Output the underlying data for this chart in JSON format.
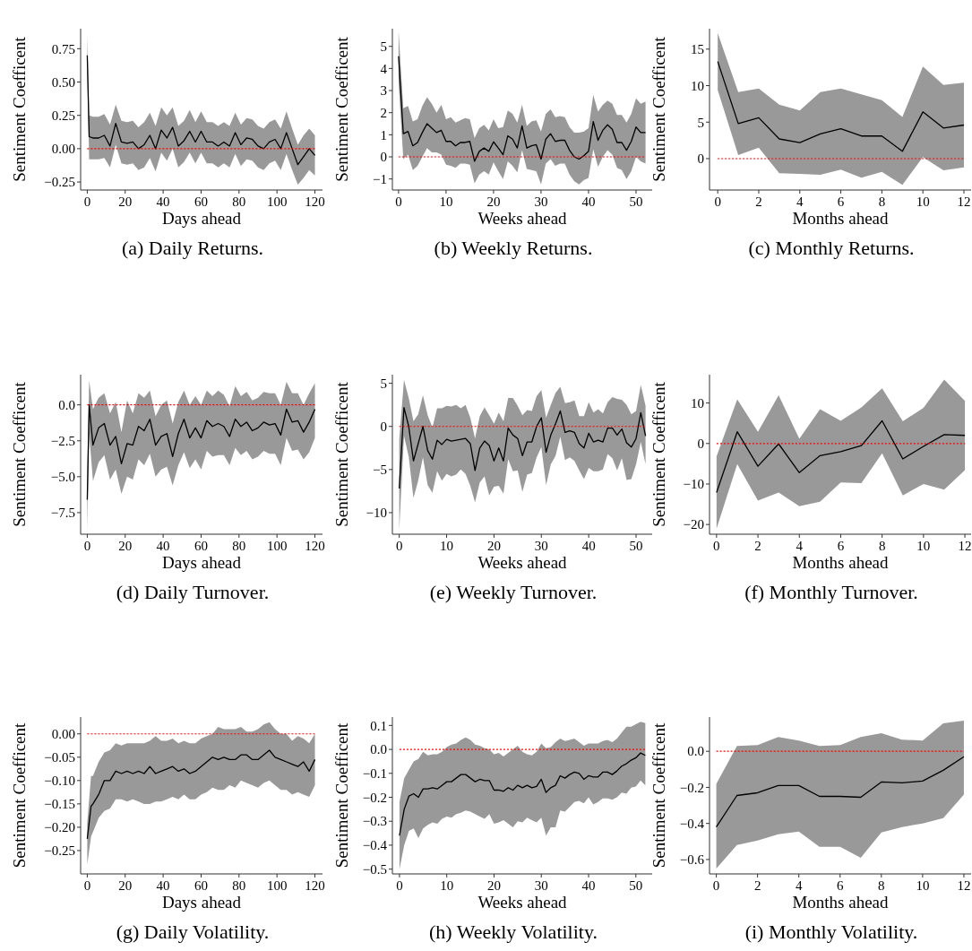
{
  "chart_data": [
    {
      "type": "line",
      "title": "(a) Daily Returns.",
      "xlabel": "Days ahead",
      "ylabel": "Sentiment Coefficent",
      "xlim": [
        -3.5,
        124
      ],
      "xticks": [
        0,
        20,
        40,
        60,
        80,
        100,
        120
      ],
      "ylim": [
        -0.31,
        0.9
      ],
      "yticks": [
        {
          "value": -0.25,
          "label": "−0.25"
        },
        {
          "value": 0,
          "label": "0.00"
        },
        0.25,
        {
          "value": 0.5,
          "label": "0.50"
        },
        0.75
      ],
      "grid": false,
      "ref_lines": [
        {
          "axis": "y",
          "value": 0,
          "color": "#ff0000",
          "line_style": "dotted"
        }
      ],
      "series": [
        {
          "color": "#000000",
          "x": [
            0,
            1,
            3,
            6,
            9,
            12,
            15,
            18,
            21,
            24,
            27,
            30,
            33,
            36,
            39,
            42,
            45,
            48,
            51,
            54,
            57,
            60,
            63,
            66,
            69,
            72,
            75,
            78,
            81,
            84,
            87,
            90,
            93,
            96,
            99,
            102,
            105,
            108,
            111,
            114,
            117,
            120
          ],
          "values": [
            0.7,
            0.09,
            0.08,
            0.08,
            0.1,
            0.02,
            0.19,
            0.05,
            0.04,
            0.05,
            0.0,
            0.03,
            0.1,
            0.0,
            0.14,
            0.08,
            0.16,
            0.02,
            0.06,
            0.13,
            0.05,
            0.13,
            0.05,
            0.05,
            0.02,
            0.05,
            0.02,
            0.12,
            0.03,
            0.08,
            0.07,
            0.02,
            0.0,
            0.05,
            0.07,
            0.0,
            0.12,
            0.0,
            -0.12,
            -0.06,
            0.0,
            -0.05
          ],
          "upper": [
            0.85,
            0.25,
            0.24,
            0.24,
            0.26,
            0.18,
            0.33,
            0.21,
            0.2,
            0.21,
            0.16,
            0.2,
            0.27,
            0.17,
            0.31,
            0.25,
            0.31,
            0.17,
            0.21,
            0.29,
            0.2,
            0.28,
            0.2,
            0.2,
            0.17,
            0.2,
            0.17,
            0.27,
            0.18,
            0.23,
            0.22,
            0.17,
            0.15,
            0.2,
            0.22,
            0.15,
            0.28,
            0.15,
            0.03,
            0.1,
            0.15,
            0.1
          ],
          "lower": [
            0.55,
            -0.08,
            -0.08,
            -0.08,
            -0.07,
            -0.14,
            0.03,
            -0.11,
            -0.12,
            -0.11,
            -0.16,
            -0.14,
            -0.07,
            -0.17,
            -0.03,
            -0.09,
            0.0,
            -0.14,
            -0.1,
            -0.03,
            -0.11,
            -0.03,
            -0.11,
            -0.11,
            -0.14,
            -0.11,
            -0.14,
            -0.04,
            -0.13,
            -0.08,
            -0.09,
            -0.14,
            -0.16,
            -0.11,
            -0.09,
            -0.16,
            -0.04,
            -0.16,
            -0.27,
            -0.22,
            -0.16,
            -0.2
          ]
        }
      ]
    },
    {
      "type": "line",
      "title": "(b) Weekly Returns.",
      "xlabel": "Weeks ahead",
      "ylabel": "Sentiment Coefficent",
      "xlim": [
        -1.3,
        53.4
      ],
      "xticks": [
        0,
        10,
        20,
        30,
        40,
        50
      ],
      "ylim": [
        -1.5,
        5.8
      ],
      "yticks": [
        {
          "value": -1,
          "label": "−1"
        },
        0,
        1,
        2,
        3,
        4,
        5
      ],
      "grid": false,
      "ref_lines": [
        {
          "axis": "y",
          "value": 0,
          "color": "#ff0000",
          "line_style": "dotted"
        }
      ],
      "series": [
        {
          "color": "#000000",
          "x": [
            0,
            1,
            2,
            3,
            4,
            5,
            6,
            7,
            8,
            9,
            10,
            11,
            12,
            13,
            14,
            15,
            16,
            17,
            18,
            19,
            20,
            21,
            22,
            23,
            24,
            25,
            26,
            27,
            28,
            29,
            30,
            31,
            32,
            33,
            34,
            35,
            36,
            37,
            38,
            39,
            40,
            41,
            42,
            43,
            44,
            45,
            46,
            47,
            48,
            49,
            50,
            51,
            52
          ],
          "values": [
            4.55,
            1.05,
            1.15,
            0.5,
            0.65,
            1.1,
            1.5,
            1.3,
            1.1,
            1.2,
            0.7,
            0.7,
            0.5,
            0.65,
            0.65,
            0.7,
            -0.2,
            0.25,
            0.4,
            0.25,
            0.68,
            0.4,
            0.1,
            0.95,
            0.8,
            0.4,
            1.4,
            0.4,
            0.5,
            0.55,
            -0.1,
            0.8,
            1.05,
            0.7,
            0.75,
            0.75,
            0.3,
            0.0,
            -0.1,
            0.05,
            0.25,
            1.6,
            0.75,
            1.2,
            1.45,
            1.25,
            0.65,
            0.65,
            0.3,
            0.7,
            1.35,
            1.1,
            1.1
          ],
          "upper": [
            5.7,
            2.2,
            2.3,
            1.6,
            1.7,
            2.3,
            2.7,
            2.4,
            2.0,
            2.35,
            1.7,
            1.8,
            1.55,
            1.65,
            1.75,
            1.7,
            0.85,
            1.3,
            1.45,
            1.2,
            1.7,
            1.3,
            1.35,
            2.1,
            1.95,
            1.55,
            2.35,
            1.4,
            1.6,
            1.65,
            1.15,
            1.95,
            2.15,
            1.8,
            1.85,
            1.8,
            1.35,
            1.1,
            1.1,
            1.15,
            1.3,
            2.8,
            2.05,
            2.35,
            2.55,
            2.4,
            1.9,
            1.9,
            1.55,
            1.95,
            2.65,
            2.4,
            2.5
          ],
          "lower": [
            3.4,
            -0.1,
            0.1,
            -0.6,
            -0.4,
            0,
            0.4,
            0.2,
            0.2,
            0.1,
            -0.35,
            -0.4,
            -0.5,
            -0.3,
            -0.3,
            -0.35,
            -1.2,
            -0.8,
            -0.65,
            -0.8,
            -0.25,
            -0.65,
            -1.0,
            -0.2,
            -0.4,
            -0.7,
            0.3,
            -0.55,
            -0.6,
            -0.65,
            -1.25,
            -0.3,
            -0.1,
            -0.4,
            -0.3,
            -0.3,
            -0.8,
            -1.1,
            -1.25,
            -1.05,
            -0.95,
            0.35,
            -0.45,
            0,
            0.3,
            0.1,
            -0.5,
            -0.6,
            -1.0,
            -0.65,
            0,
            -0.2,
            -0.3
          ]
        }
      ]
    },
    {
      "type": "line",
      "title": "(c) Monthly Returns.",
      "xlabel": "Months ahead",
      "ylabel": "Sentiment Coefficent",
      "xlim": [
        -0.4,
        12.35
      ],
      "xticks": [
        0,
        2,
        4,
        6,
        8,
        10,
        12
      ],
      "ylim": [
        -4.3,
        17.8
      ],
      "yticks": [
        0,
        5,
        10,
        15
      ],
      "grid": false,
      "ref_lines": [
        {
          "axis": "y",
          "value": 0,
          "color": "#ff0000",
          "line_style": "dotted"
        }
      ],
      "series": [
        {
          "color": "#000000",
          "x": [
            0,
            1,
            2,
            3,
            4,
            5,
            6,
            7,
            8,
            9,
            10,
            11,
            12
          ],
          "values": [
            13.3,
            4.8,
            5.6,
            2.7,
            2.2,
            3.4,
            4.1,
            3.1,
            3.1,
            1.0,
            6.4,
            4.2,
            4.6
          ],
          "upper": [
            17.2,
            9.1,
            9.6,
            7.4,
            6.6,
            9.1,
            9.6,
            8.8,
            8.0,
            5.7,
            12.6,
            10.1,
            10.4
          ],
          "lower": [
            9.4,
            0.5,
            1.5,
            -2.0,
            -2.1,
            -2.2,
            -1.5,
            -2.6,
            -1.8,
            -3.6,
            0.2,
            -1.6,
            -1.2
          ]
        }
      ]
    },
    {
      "type": "line",
      "title": "(d) Daily Turnover.",
      "xlabel": "Days ahead",
      "ylabel": "Sentiment Coefficent",
      "xlim": [
        -3.5,
        124
      ],
      "xticks": [
        0,
        20,
        40,
        60,
        80,
        100,
        120
      ],
      "ylim": [
        -9,
        2.1
      ],
      "yticks": [
        {
          "value": -7.5,
          "label": "−7.5"
        },
        {
          "value": -5,
          "label": "−5.0"
        },
        {
          "value": -2.5,
          "label": "−2.5"
        },
        {
          "value": 0,
          "label": "0.0"
        }
      ],
      "grid": false,
      "ref_lines": [
        {
          "axis": "y",
          "value": 0,
          "color": "#ff0000",
          "line_style": "dotted"
        }
      ],
      "series": [
        {
          "color": "#000000",
          "x": [
            0,
            1,
            3,
            6,
            9,
            12,
            15,
            18,
            21,
            24,
            27,
            30,
            33,
            36,
            39,
            42,
            45,
            48,
            51,
            54,
            57,
            60,
            63,
            66,
            69,
            72,
            75,
            78,
            81,
            84,
            87,
            90,
            93,
            96,
            99,
            102,
            105,
            108,
            111,
            114,
            117,
            120
          ],
          "values": [
            -6.6,
            0,
            -2.8,
            -1.6,
            -1.3,
            -2.8,
            -2.2,
            -4.1,
            -2.7,
            -2.8,
            -1.5,
            -1.8,
            -1.0,
            -2.8,
            -2.2,
            -2.0,
            -3.6,
            -2.0,
            -1.0,
            -2.3,
            -1.6,
            -2.3,
            -1.1,
            -1.5,
            -1.3,
            -1.5,
            -2.2,
            -1.0,
            -1.5,
            -1.2,
            -1.8,
            -1.6,
            -1.2,
            -1.4,
            -1.3,
            -2.1,
            -0.3,
            -1.2,
            -1.1,
            -1.9,
            -1.2,
            -0.3
          ],
          "upper": [
            -4.5,
            1.7,
            -0.3,
            0.5,
            0.8,
            -0.6,
            0.2,
            -1.9,
            0.3,
            -0.6,
            0.8,
            0.5,
            1.0,
            -0.8,
            0.0,
            0.3,
            -1.3,
            0.2,
            1.0,
            0.0,
            0.6,
            0.0,
            1.0,
            0.6,
            1.0,
            0.7,
            -0.1,
            1.3,
            0.6,
            0.9,
            0.3,
            0.5,
            0.9,
            0.8,
            0.8,
            0.0,
            1.6,
            0.8,
            0.8,
            0.0,
            0.8,
            1.5
          ],
          "lower": [
            -8.8,
            -2.0,
            -5.3,
            -4.0,
            -3.5,
            -5.2,
            -4.5,
            -6.2,
            -5.0,
            -5.2,
            -3.8,
            -4.2,
            -3.4,
            -5.0,
            -4.5,
            -4.3,
            -5.6,
            -4.2,
            -3.3,
            -4.4,
            -3.8,
            -4.5,
            -3.2,
            -3.6,
            -3.5,
            -3.5,
            -4.2,
            -3.0,
            -3.5,
            -3.2,
            -3.8,
            -3.6,
            -3.2,
            -3.4,
            -3.4,
            -4.2,
            -2.3,
            -3.2,
            -3.1,
            -3.8,
            -3.3,
            -2.3
          ]
        }
      ]
    },
    {
      "type": "line",
      "title": "(e) Weekly Turnover.",
      "xlabel": "Weeks ahead",
      "ylabel": "Sentiment Coefficent",
      "xlim": [
        -1.45,
        53.4
      ],
      "xticks": [
        0,
        10,
        20,
        30,
        40,
        50
      ],
      "ylim": [
        -12.5,
        6
      ],
      "yticks": [
        {
          "value": -10,
          "label": "−10"
        },
        {
          "value": -5,
          "label": "−5"
        },
        0,
        5
      ],
      "grid": false,
      "ref_lines": [
        {
          "axis": "y",
          "value": 0,
          "color": "#ff0000",
          "line_style": "dotted"
        }
      ],
      "series": [
        {
          "color": "#000000",
          "x": [
            0,
            1,
            2,
            3,
            4,
            5,
            6,
            7,
            8,
            9,
            10,
            11,
            12,
            13,
            14,
            15,
            16,
            17,
            18,
            19,
            20,
            21,
            22,
            23,
            24,
            25,
            26,
            27,
            28,
            29,
            30,
            31,
            32,
            33,
            34,
            35,
            36,
            37,
            38,
            39,
            40,
            41,
            42,
            43,
            44,
            45,
            46,
            47,
            48,
            49,
            50,
            51,
            52
          ],
          "values": [
            -7.2,
            2.2,
            0,
            -4,
            -2,
            0,
            -2.8,
            -3.8,
            -1.6,
            -2.1,
            -1.5,
            -1.7,
            -1.6,
            -1.5,
            -1.4,
            -2.0,
            -5.1,
            -2.5,
            -1.7,
            -2.2,
            -4.0,
            -2.5,
            -4.0,
            -0.2,
            -1.0,
            -1.4,
            -3.4,
            -1.8,
            -1.8,
            0.0,
            1.0,
            -3.0,
            -1.0,
            0.3,
            1.8,
            -0.7,
            -0.5,
            -0.7,
            -2.0,
            -2.5,
            -0.8,
            -1.8,
            -1.6,
            -1.8,
            -0.2,
            -0.2,
            -1.0,
            -0.3,
            -1.9,
            -2.4,
            -1.4,
            1.6,
            -1.1
          ],
          "upper": [
            -1.5,
            5.4,
            3.3,
            0.6,
            1.4,
            3.6,
            1.3,
            -0.1,
            2.1,
            2.1,
            2.4,
            2.3,
            2.5,
            2.1,
            2.5,
            1.0,
            -1.4,
            1.2,
            2.2,
            1.3,
            0.3,
            1.6,
            0.6,
            3.3,
            3.3,
            2.4,
            1.3,
            1.9,
            1.8,
            3.5,
            4.2,
            1.0,
            2.5,
            3.9,
            4.6,
            2.7,
            2.8,
            3.0,
            1.2,
            1.2,
            2.8,
            1.6,
            2.0,
            1.5,
            2.8,
            3.4,
            3.2,
            3.1,
            2.5,
            1.4,
            1.8,
            4.8,
            2.4
          ],
          "lower": [
            -12,
            -1.1,
            -3.5,
            -8.3,
            -6.3,
            -3.6,
            -6.8,
            -7.7,
            -5.2,
            -6.3,
            -5.5,
            -5.8,
            -5.6,
            -5.0,
            -5.5,
            -6.9,
            -8.8,
            -6.5,
            -5.8,
            -8.0,
            -7.0,
            -6.9,
            -7.8,
            -3.8,
            -5.2,
            -5.1,
            -7.6,
            -5.6,
            -5.4,
            -3.6,
            -2.4,
            -6.8,
            -4.4,
            -3.4,
            -1.2,
            -3.9,
            -3.6,
            -4.0,
            -5.1,
            -6.1,
            -4.8,
            -5.2,
            -5.2,
            -5.0,
            -3.2,
            -3.7,
            -5.1,
            -3.7,
            -6.2,
            -6.1,
            -4.4,
            -1.8,
            -4.4
          ]
        }
      ]
    },
    {
      "type": "line",
      "title": "(f) Monthly Turnover.",
      "xlabel": "Months ahead",
      "ylabel": "Sentiment Coefficent",
      "xlim": [
        -0.34,
        12.3
      ],
      "xticks": [
        0,
        2,
        4,
        6,
        8,
        10,
        12
      ],
      "ylim": [
        -22.4,
        17
      ],
      "yticks": [
        {
          "value": -20,
          "label": "−20"
        },
        {
          "value": -10,
          "label": "−10"
        },
        0,
        10
      ],
      "grid": false,
      "ref_lines": [
        {
          "axis": "y",
          "value": 0,
          "color": "#ff0000",
          "line_style": "dotted"
        }
      ],
      "series": [
        {
          "color": "#000000",
          "x": [
            0,
            1,
            2,
            3,
            4,
            5,
            6,
            7,
            8,
            9,
            10,
            11,
            12
          ],
          "values": [
            -12.1,
            2.9,
            -5.6,
            -0.1,
            -7.2,
            -3.0,
            -2.0,
            -0.5,
            5.6,
            -3.8,
            -0.7,
            2.2,
            2.0
          ],
          "upper": [
            -3.2,
            10.9,
            2.9,
            11.9,
            1.2,
            8.5,
            5.6,
            8.9,
            13.6,
            5.5,
            8.8,
            15.8,
            10.5
          ],
          "lower": [
            -21,
            -5.1,
            -14.1,
            -12.1,
            -15.5,
            -14.4,
            -9.6,
            -9.8,
            -2.4,
            -12.8,
            -10.0,
            -11.4,
            -6.6
          ]
        }
      ]
    },
    {
      "type": "line",
      "title": "(g) Daily Volatility.",
      "xlabel": "Days ahead",
      "ylabel": "Sentiment Coefficent",
      "xlim": [
        -3.5,
        124
      ],
      "xticks": [
        0,
        20,
        40,
        60,
        80,
        100,
        120
      ],
      "ylim": [
        -0.3,
        0.036
      ],
      "yticks": [
        {
          "value": -0.25,
          "label": "−0.25"
        },
        {
          "value": -0.2,
          "label": "−0.20"
        },
        {
          "value": -0.15,
          "label": "−0.15"
        },
        {
          "value": -0.1,
          "label": "−0.10"
        },
        {
          "value": -0.05,
          "label": "−0.05"
        },
        {
          "value": 0,
          "label": "0.00"
        }
      ],
      "grid": false,
      "ref_lines": [
        {
          "axis": "y",
          "value": 0,
          "color": "#ff0000",
          "line_style": "dotted"
        }
      ],
      "series": [
        {
          "color": "#000000",
          "x": [
            0,
            2,
            3,
            6,
            9,
            12,
            15,
            18,
            21,
            24,
            27,
            30,
            33,
            36,
            39,
            42,
            45,
            48,
            51,
            54,
            57,
            60,
            63,
            66,
            69,
            72,
            75,
            78,
            81,
            84,
            87,
            90,
            93,
            96,
            99,
            102,
            105,
            108,
            111,
            114,
            117,
            120
          ],
          "values": [
            -0.225,
            -0.155,
            -0.15,
            -0.13,
            -0.1,
            -0.1,
            -0.08,
            -0.085,
            -0.08,
            -0.085,
            -0.08,
            -0.085,
            -0.07,
            -0.085,
            -0.08,
            -0.075,
            -0.07,
            -0.08,
            -0.075,
            -0.085,
            -0.08,
            -0.07,
            -0.06,
            -0.05,
            -0.055,
            -0.05,
            -0.055,
            -0.055,
            -0.045,
            -0.045,
            -0.055,
            -0.055,
            -0.045,
            -0.035,
            -0.05,
            -0.055,
            -0.06,
            -0.065,
            -0.07,
            -0.06,
            -0.08,
            -0.055
          ],
          "upper": [
            -0.19,
            -0.09,
            -0.09,
            -0.06,
            -0.04,
            -0.035,
            -0.02,
            -0.025,
            -0.02,
            -0.02,
            -0.02,
            -0.02,
            -0.015,
            -0.005,
            -0.015,
            -0.015,
            -0.01,
            -0.02,
            -0.015,
            -0.02,
            -0.02,
            -0.01,
            -0.005,
            0.0,
            0.015,
            0.01,
            0.01,
            0.01,
            0.015,
            0.005,
            0.005,
            0.01,
            0.02,
            0.025,
            0.01,
            0.0,
            0.0,
            -0.015,
            -0.005,
            -0.01,
            -0.02,
            0.0
          ],
          "lower": [
            -0.28,
            -0.22,
            -0.21,
            -0.18,
            -0.165,
            -0.16,
            -0.14,
            -0.14,
            -0.145,
            -0.14,
            -0.145,
            -0.15,
            -0.15,
            -0.145,
            -0.145,
            -0.14,
            -0.135,
            -0.14,
            -0.13,
            -0.14,
            -0.14,
            -0.13,
            -0.125,
            -0.115,
            -0.12,
            -0.12,
            -0.11,
            -0.115,
            -0.1,
            -0.105,
            -0.11,
            -0.115,
            -0.105,
            -0.1,
            -0.11,
            -0.12,
            -0.12,
            -0.13,
            -0.125,
            -0.13,
            -0.135,
            -0.11
          ]
        }
      ]
    },
    {
      "type": "line",
      "title": "(h) Weekly Volatility.",
      "xlabel": "Weeks ahead",
      "ylabel": "Sentiment Coefficent",
      "xlim": [
        -1.5,
        53.45
      ],
      "xticks": [
        0,
        10,
        20,
        30,
        40,
        50
      ],
      "ylim": [
        -0.52,
        0.135
      ],
      "yticks": [
        {
          "value": -0.5,
          "label": "−0.5"
        },
        {
          "value": -0.4,
          "label": "−0.4"
        },
        {
          "value": -0.3,
          "label": "−0.3"
        },
        {
          "value": -0.2,
          "label": "−0.2"
        },
        {
          "value": -0.1,
          "label": "−0.1"
        },
        {
          "value": 0,
          "label": "0.0"
        },
        0.1
      ],
      "grid": false,
      "ref_lines": [
        {
          "axis": "y",
          "value": 0,
          "color": "#ff0000",
          "line_style": "dotted"
        }
      ],
      "series": [
        {
          "color": "#000000",
          "x": [
            0,
            1,
            2,
            3,
            4,
            5,
            6,
            7,
            8,
            9,
            10,
            11,
            12,
            13,
            14,
            15,
            16,
            17,
            18,
            19,
            20,
            21,
            22,
            23,
            24,
            25,
            26,
            27,
            28,
            29,
            30,
            31,
            32,
            33,
            34,
            35,
            36,
            37,
            38,
            39,
            40,
            41,
            42,
            43,
            44,
            45,
            46,
            47,
            48,
            49,
            50,
            51,
            52
          ],
          "values": [
            -0.36,
            -0.25,
            -0.195,
            -0.185,
            -0.2,
            -0.165,
            -0.165,
            -0.16,
            -0.165,
            -0.15,
            -0.135,
            -0.135,
            -0.12,
            -0.105,
            -0.105,
            -0.12,
            -0.135,
            -0.125,
            -0.13,
            -0.13,
            -0.17,
            -0.17,
            -0.175,
            -0.16,
            -0.17,
            -0.15,
            -0.16,
            -0.15,
            -0.16,
            -0.155,
            -0.125,
            -0.18,
            -0.16,
            -0.15,
            -0.11,
            -0.12,
            -0.105,
            -0.095,
            -0.1,
            -0.125,
            -0.11,
            -0.115,
            -0.115,
            -0.095,
            -0.095,
            -0.105,
            -0.09,
            -0.07,
            -0.06,
            -0.045,
            -0.035,
            -0.015,
            -0.025
          ],
          "upper": [
            -0.22,
            -0.12,
            -0.085,
            -0.05,
            -0.04,
            -0.01,
            -0.025,
            -0.02,
            -0.02,
            -0.01,
            0.01,
            0.02,
            0.025,
            0.04,
            0.05,
            0.04,
            0.02,
            0.015,
            0.005,
            0.0,
            -0.02,
            -0.015,
            -0.03,
            -0.015,
            0,
            0.015,
            -0.01,
            -0.02,
            -0.025,
            -0.01,
            0.025,
            0.005,
            0.01,
            0.03,
            0.045,
            0.035,
            0.04,
            0.045,
            0.03,
            0.015,
            0.025,
            0.025,
            0.025,
            0.035,
            0.04,
            0.03,
            0.045,
            0.07,
            0.095,
            0.095,
            0.105,
            0.115,
            0.11
          ],
          "lower": [
            -0.5,
            -0.4,
            -0.34,
            -0.33,
            -0.37,
            -0.33,
            -0.315,
            -0.305,
            -0.31,
            -0.29,
            -0.28,
            -0.285,
            -0.27,
            -0.265,
            -0.255,
            -0.26,
            -0.27,
            -0.28,
            -0.29,
            -0.27,
            -0.31,
            -0.305,
            -0.295,
            -0.31,
            -0.325,
            -0.3,
            -0.305,
            -0.285,
            -0.295,
            -0.305,
            -0.285,
            -0.36,
            -0.325,
            -0.325,
            -0.255,
            -0.26,
            -0.24,
            -0.22,
            -0.215,
            -0.225,
            -0.2,
            -0.23,
            -0.22,
            -0.205,
            -0.205,
            -0.21,
            -0.2,
            -0.18,
            -0.185,
            -0.16,
            -0.155,
            -0.13,
            -0.15
          ]
        }
      ]
    },
    {
      "type": "line",
      "title": "(i) Monthly Volatility.",
      "xlabel": "Months ahead",
      "ylabel": "Sentiment Coefficent",
      "xlim": [
        -0.33,
        12.35
      ],
      "xticks": [
        0,
        2,
        4,
        6,
        8,
        10,
        12
      ],
      "ylim": [
        -0.68,
        0.19
      ],
      "yticks": [
        {
          "value": -0.6,
          "label": "−0.6"
        },
        {
          "value": -0.4,
          "label": "−0.4"
        },
        {
          "value": -0.2,
          "label": "−0.2"
        },
        {
          "value": 0,
          "label": "0.0"
        }
      ],
      "grid": false,
      "ref_lines": [
        {
          "axis": "y",
          "value": 0,
          "color": "#ff0000",
          "line_style": "dotted"
        }
      ],
      "series": [
        {
          "color": "#000000",
          "x": [
            0,
            1,
            2,
            3,
            4,
            5,
            6,
            7,
            8,
            9,
            10,
            11,
            12
          ],
          "values": [
            -0.42,
            -0.245,
            -0.23,
            -0.19,
            -0.19,
            -0.25,
            -0.25,
            -0.255,
            -0.17,
            -0.175,
            -0.165,
            -0.105,
            -0.03
          ],
          "upper": [
            -0.18,
            0.03,
            0.035,
            0.08,
            0.06,
            0.03,
            0.035,
            0.08,
            0.1,
            0.065,
            0.06,
            0.155,
            0.17
          ],
          "lower": [
            -0.65,
            -0.52,
            -0.495,
            -0.46,
            -0.445,
            -0.53,
            -0.53,
            -0.59,
            -0.45,
            -0.42,
            -0.4,
            -0.37,
            -0.24
          ]
        }
      ]
    }
  ]
}
